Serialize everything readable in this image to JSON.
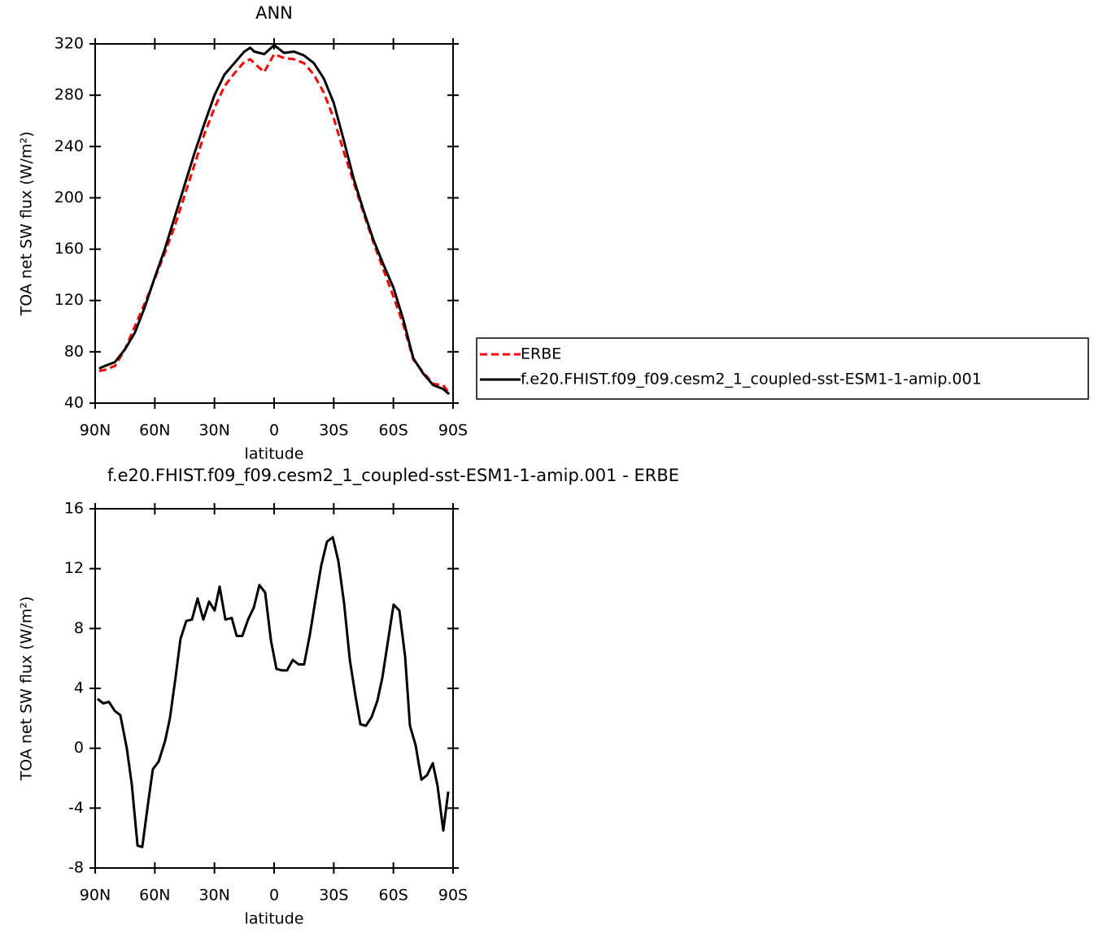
{
  "chart_data": [
    {
      "type": "line",
      "title": "ANN",
      "x_label": "latitude",
      "y_label": "TOA net SW flux (W/m²)",
      "x": [
        88,
        85,
        80,
        75,
        70,
        65,
        60,
        55,
        50,
        45,
        40,
        35,
        30,
        25,
        20,
        15,
        12,
        10,
        5,
        0,
        -5,
        -10,
        -15,
        -20,
        -25,
        -30,
        -35,
        -40,
        -45,
        -50,
        -55,
        -60,
        -65,
        -70,
        -75,
        -80,
        -85,
        -88
      ],
      "xlim": [
        90,
        -90
      ],
      "xticks": [
        {
          "value": 90,
          "label": "90N"
        },
        {
          "value": 60,
          "label": "60N"
        },
        {
          "value": 30,
          "label": "30N"
        },
        0,
        {
          "value": -30,
          "label": "30S"
        },
        {
          "value": -60,
          "label": "60S"
        },
        {
          "value": -90,
          "label": "90S"
        }
      ],
      "ylim": [
        40,
        320
      ],
      "yticks": [
        40,
        80,
        120,
        160,
        200,
        240,
        280,
        320
      ],
      "series": [
        {
          "name": "ERBE",
          "color": "#ff0000",
          "dashed": true,
          "values": [
            65,
            66,
            69,
            82,
            100,
            118,
            137,
            157,
            178,
            202,
            226,
            250,
            270,
            287,
            297,
            306,
            308,
            305,
            298,
            312,
            309,
            308,
            305,
            296,
            282,
            262,
            236,
            212,
            188,
            165,
            144,
            123,
            101,
            74,
            64,
            55,
            54,
            48
          ]
        },
        {
          "name": "f.e20.FHIST.f09_f09.cesm2_1_coupled-sst-ESM1-1-amip.001",
          "color": "#000000",
          "dashed": false,
          "values": [
            67,
            69,
            72,
            82,
            95,
            115,
            138,
            160,
            185,
            210,
            235,
            258,
            280,
            296,
            305,
            314,
            317,
            314,
            312,
            319,
            313,
            314,
            311,
            305,
            293,
            274,
            245,
            215,
            190,
            167,
            148,
            130,
            105,
            75,
            63,
            54,
            51,
            47
          ]
        }
      ],
      "legend": true
    },
    {
      "type": "line",
      "title": "f.e20.FHIST.f09_f09.cesm2_1_coupled-sst-ESM1-1-amip.001 - ERBE",
      "x_label": "latitude",
      "y_label": "TOA net SW flux (W/m²)",
      "x": [
        88.8,
        85.9,
        83.1,
        80.2,
        77.3,
        74.1,
        71.6,
        68.7,
        66.3,
        63.4,
        61.0,
        58.1,
        54.8,
        52.4,
        49.5,
        47.1,
        44.2,
        41.3,
        38.5,
        35.6,
        32.7,
        29.9,
        27.4,
        24.5,
        21.3,
        18.8,
        16.0,
        13.1,
        10.2,
        7.4,
        4.5,
        1.6,
        -1.2,
        -4.1,
        -6.5,
        -9.4,
        -12.3,
        -15.1,
        -18.0,
        -20.9,
        -23.7,
        -26.6,
        -29.5,
        -32.3,
        -35.2,
        -38.1,
        -40.9,
        -43.4,
        -46.2,
        -49.1,
        -52.0,
        -54.4,
        -57.3,
        -60.1,
        -63.0,
        -65.9,
        -68.3,
        -71.2,
        -74.1,
        -76.9,
        -79.8,
        -82.2,
        -85.1,
        -87.6
      ],
      "values": [
        3.3,
        3.0,
        3.1,
        2.5,
        2.2,
        0,
        -2.4,
        -6.5,
        -6.6,
        -3.7,
        -1.4,
        -0.9,
        0.5,
        2.0,
        4.8,
        7.3,
        8.5,
        8.6,
        10.0,
        8.6,
        9.8,
        9.2,
        10.8,
        8.6,
        8.7,
        7.5,
        7.5,
        8.6,
        9.4,
        10.9,
        10.4,
        7.2,
        5.3,
        5.2,
        5.2,
        5.9,
        5.6,
        5.6,
        7.6,
        10.0,
        12.2,
        13.8,
        14.1,
        12.5,
        9.7,
        5.9,
        3.5,
        1.6,
        1.5,
        2.1,
        3.2,
        4.7,
        7.2,
        9.6,
        9.2,
        6.1,
        1.5,
        0.2,
        -2.1,
        -1.8,
        -1.0,
        -2.5,
        -5.5,
        -2.9
      ],
      "color": "#000000",
      "xlim": [
        90,
        -90
      ],
      "xticks": [
        {
          "value": 90,
          "label": "90N"
        },
        {
          "value": 60,
          "label": "60N"
        },
        {
          "value": 30,
          "label": "30N"
        },
        0,
        {
          "value": -30,
          "label": "30S"
        },
        {
          "value": -60,
          "label": "60S"
        },
        {
          "value": -90,
          "label": "90S"
        }
      ],
      "ylim": [
        -8,
        16
      ],
      "yticks": [
        -8,
        -4,
        0,
        4,
        8,
        12,
        16
      ]
    }
  ]
}
